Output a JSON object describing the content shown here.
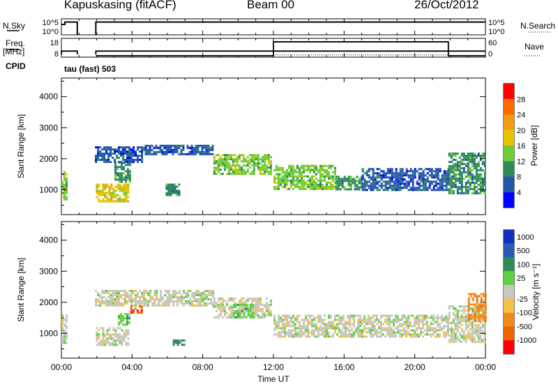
{
  "header": {
    "station": "Kapuskasing (fitACF)",
    "beam": "Beam 00",
    "date": "26/Oct/2012"
  },
  "side_labels": {
    "nsky": "N.Sky",
    "nsearch": "N.Search",
    "freq_line1": "Freq.",
    "freq_line2": "[MHz]",
    "nave": "Nave",
    "cpid": "CPID",
    "cpid_value": "tau (fast) 503"
  },
  "colors": {
    "power_scale": [
      "#0000ff",
      "#2255a8",
      "#2e8b57",
      "#6fcd37",
      "#e6c200",
      "#f39c12",
      "#ff6a00",
      "#ff0000"
    ],
    "velocity_scale": [
      "#1030c0",
      "#2a5cb5",
      "#2e8b57",
      "#5fd040",
      "#c8c8c0",
      "#f5c242",
      "#f08a20",
      "#ee6500",
      "#ff0000"
    ],
    "ground_scatter": "#c0c0b8"
  },
  "chart_data": [
    {
      "type": "line",
      "name": "noise",
      "left_label": "N.Sky",
      "right_label": "N.Search",
      "left_ticks": [
        "10^5",
        "10^0"
      ],
      "right_ticks": [
        "10^5",
        "10^0"
      ],
      "x_range_hours": [
        0,
        24
      ],
      "segments": [
        {
          "x": [
            0,
            0.2,
            0.2,
            0.9,
            0.9
          ],
          "y": [
            0.35,
            0.35,
            0.2,
            0.2,
            1.0
          ]
        },
        {
          "x": [
            1.95,
            1.95,
            24
          ],
          "y": [
            1.0,
            0.2,
            0.2
          ]
        }
      ]
    },
    {
      "type": "line",
      "name": "frequency",
      "left_label": "Freq. [MHz]",
      "right_label": "Nave",
      "left_ticks": [
        "18",
        "8"
      ],
      "right_ticks": [
        "60",
        "0"
      ],
      "x_range_hours": [
        0,
        24
      ],
      "freq_segments": [
        {
          "x": [
            0,
            0,
            0.9,
            0.9
          ],
          "y": [
            8,
            10.5,
            10.5,
            8
          ]
        },
        {
          "x": [
            1.95,
            1.95,
            24
          ],
          "y": [
            8,
            10.5,
            10.5
          ]
        }
      ],
      "nave_segments": [
        {
          "x": [
            1.95,
            12.0,
            12.0,
            21.9,
            21.9,
            24
          ],
          "y": [
            0,
            0,
            52,
            52,
            0,
            0
          ]
        }
      ]
    },
    {
      "type": "heatmap",
      "name": "power",
      "ylabel": "Slant Range [km]",
      "colorbar_label": "Power [dB]",
      "colorbar_ticks": [
        "28",
        "24",
        "20",
        "16",
        "12",
        "8",
        "4"
      ],
      "y_ticks": [
        1000,
        2000,
        3000,
        4000
      ],
      "ylim": [
        200,
        4600
      ],
      "xlim_hours": [
        0,
        24
      ],
      "regions": [
        {
          "t": [
            0.0,
            0.35
          ],
          "r": [
            700,
            1600
          ],
          "level": 3
        },
        {
          "t": [
            1.95,
            3.8
          ],
          "r": [
            650,
            1200
          ],
          "level": 4
        },
        {
          "t": [
            3.0,
            3.9
          ],
          "r": [
            1250,
            1900
          ],
          "level": 2
        },
        {
          "t": [
            1.9,
            4.6
          ],
          "r": [
            1900,
            2400
          ],
          "level": 1
        },
        {
          "t": [
            4.6,
            8.6
          ],
          "r": [
            2150,
            2450
          ],
          "level": 1
        },
        {
          "t": [
            8.6,
            11.9
          ],
          "r": [
            1500,
            2150
          ],
          "level": 3
        },
        {
          "t": [
            5.9,
            6.7
          ],
          "r": [
            800,
            1200
          ],
          "level": 2
        },
        {
          "t": [
            12.0,
            15.5
          ],
          "r": [
            1000,
            1800
          ],
          "level": 3
        },
        {
          "t": [
            15.5,
            17.0
          ],
          "r": [
            1000,
            1450
          ],
          "level": 2
        },
        {
          "t": [
            17.0,
            21.9
          ],
          "r": [
            1000,
            1700
          ],
          "level": 1
        },
        {
          "t": [
            21.9,
            24.0
          ],
          "r": [
            900,
            2200
          ],
          "level": 2
        }
      ]
    },
    {
      "type": "heatmap",
      "name": "velocity",
      "ylabel": "Slant Range [km]",
      "xlabel": "Time UT",
      "colorbar_label": "Velocity [m s⁻¹]",
      "colorbar_ticks": [
        "1000",
        "500",
        "100",
        "25",
        "-25",
        "-100",
        "-500",
        "-1000"
      ],
      "x_ticks": [
        "00:00",
        "04:00",
        "08:00",
        "12:00",
        "16:00",
        "20:00",
        "00:00"
      ],
      "y_ticks": [
        1000,
        2000,
        3000,
        4000
      ],
      "ylim": [
        200,
        4600
      ],
      "xlim_hours": [
        0,
        24
      ],
      "regions": [
        {
          "t": [
            0.0,
            0.35
          ],
          "r": [
            700,
            1600
          ],
          "level": 4
        },
        {
          "t": [
            1.95,
            3.8
          ],
          "r": [
            650,
            1200
          ],
          "level": 4
        },
        {
          "t": [
            1.9,
            8.6
          ],
          "r": [
            1900,
            2400
          ],
          "level": 4
        },
        {
          "t": [
            8.6,
            11.9
          ],
          "r": [
            1500,
            2150
          ],
          "level": 4
        },
        {
          "t": [
            9.7,
            10.8
          ],
          "r": [
            1500,
            1950
          ],
          "level": 3
        },
        {
          "t": [
            3.2,
            3.8
          ],
          "r": [
            1300,
            1650
          ],
          "level": 3
        },
        {
          "t": [
            3.9,
            4.5
          ],
          "r": [
            1650,
            1900
          ],
          "level": 7
        },
        {
          "t": [
            6.3,
            6.9
          ],
          "r": [
            600,
            800
          ],
          "level": 2
        },
        {
          "t": [
            12.0,
            21.9
          ],
          "r": [
            900,
            1600
          ],
          "level": 4
        },
        {
          "t": [
            21.9,
            24.0
          ],
          "r": [
            700,
            1900
          ],
          "level": 4
        },
        {
          "t": [
            23.0,
            24.0
          ],
          "r": [
            1400,
            2300
          ],
          "level": 6
        }
      ]
    }
  ]
}
